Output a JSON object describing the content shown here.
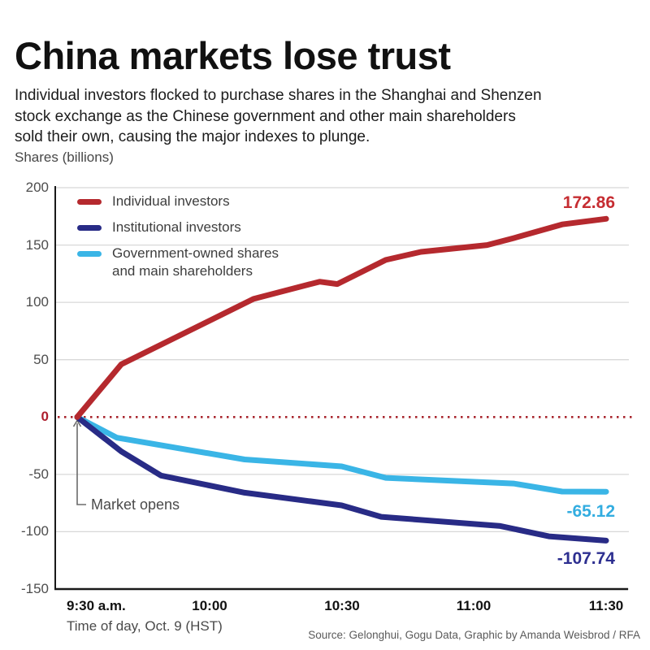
{
  "header": {
    "title": "China markets lose trust",
    "subtitle": "Individual investors flocked to purchase shares in the Shanghai and Shenzen\nstock exchange as the Chinese government and other main shareholders\nsold their own, causing the major indexes to plunge."
  },
  "chart_data": {
    "type": "line",
    "title": "China markets lose trust",
    "ylabel": "Shares (billions)",
    "xlabel": "Time of day, Oct. 9 (HST)",
    "x_unit": "minutes after market open at 9:30 a.m.",
    "xlim": [
      0,
      120
    ],
    "ylim": [
      -150,
      200
    ],
    "grid": true,
    "legend_position": "top-left-inside",
    "x_ticks": [
      {
        "t": 0,
        "label": "9:30 a.m."
      },
      {
        "t": 30,
        "label": "10:00"
      },
      {
        "t": 60,
        "label": "10:30"
      },
      {
        "t": 90,
        "label": "11:00"
      },
      {
        "t": 120,
        "label": "11:30"
      }
    ],
    "y_ticks": [
      200,
      150,
      100,
      50,
      0,
      -50,
      -100,
      -150
    ],
    "zero_line": {
      "value": 0,
      "style": "dotted",
      "color": "#a8242c"
    },
    "series": [
      {
        "name": "Individual investors",
        "color": "#b5292e",
        "label_color": "#c62d32",
        "end_label": "172.86",
        "points": [
          [
            0,
            0
          ],
          [
            10,
            46
          ],
          [
            40,
            103
          ],
          [
            55,
            118
          ],
          [
            59,
            116
          ],
          [
            70,
            137
          ],
          [
            78,
            144
          ],
          [
            93,
            150
          ],
          [
            99,
            156
          ],
          [
            110,
            168
          ],
          [
            120,
            172.86
          ]
        ]
      },
      {
        "name": "Institutional investors",
        "color": "#282b86",
        "label_color": "#2d2f90",
        "end_label": "-107.74",
        "points": [
          [
            0,
            0
          ],
          [
            10,
            -30
          ],
          [
            19,
            -51
          ],
          [
            38,
            -66
          ],
          [
            60,
            -77
          ],
          [
            69,
            -87
          ],
          [
            96,
            -95
          ],
          [
            107,
            -104
          ],
          [
            120,
            -107.74
          ]
        ]
      },
      {
        "name": "Government-owned shares and main shareholders",
        "color": "#3ab5e6",
        "label_color": "#33ade0",
        "end_label": "-65.12",
        "points": [
          [
            0,
            0
          ],
          [
            9,
            -18
          ],
          [
            38,
            -37
          ],
          [
            60,
            -43
          ],
          [
            70,
            -53
          ],
          [
            99,
            -58
          ],
          [
            110,
            -65
          ],
          [
            120,
            -65.12
          ]
        ]
      }
    ],
    "annotation": {
      "label": "Market opens",
      "at": {
        "t": 0,
        "value": 0
      }
    }
  },
  "legend": [
    {
      "lines": [
        "Individual investors"
      ],
      "color": "#b5292e"
    },
    {
      "lines": [
        "Institutional investors"
      ],
      "color": "#282b86"
    },
    {
      "lines": [
        "Government-owned shares",
        "and main shareholders"
      ],
      "color": "#3ab5e6"
    }
  ],
  "axis": {
    "y_unit_label": "Shares (billions)"
  },
  "annotation": {
    "label": "Market opens"
  },
  "footer": {
    "xaxis_title": "Time of day, Oct. 9 (HST)",
    "source": "Source: Gelonghui, Gogu Data, Graphic by Amanda Weisbrod / RFA"
  }
}
